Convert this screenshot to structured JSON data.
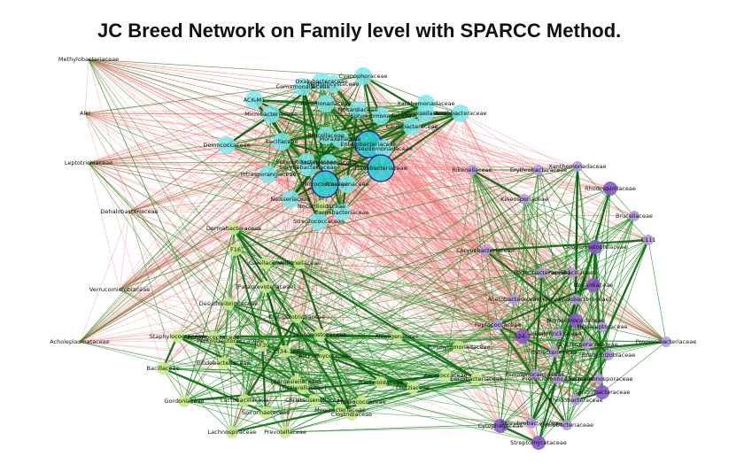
{
  "title": "JC Breed Network on Family level with SPARCC Method.",
  "colors": {
    "positive_edge": "#1a8a1a",
    "positive_edge_strong": "#0a5a0a",
    "negative_edge": "#f08080",
    "cluster_cyan": "#7fe8ec",
    "cluster_cyan_hub": "#2fd0d8",
    "cluster_green": "#c8ec8c",
    "cluster_purple": "#b89ae0",
    "cluster_purple_dark": "#8a5ac8",
    "hub_outline": "#1a1aa0"
  },
  "nodes": [
    {
      "label": "Methylobacteriaceae",
      "group": "none"
    },
    {
      "label": "Alkl",
      "group": "none"
    },
    {
      "label": "Leptotrichiaceae",
      "group": "none"
    },
    {
      "label": "Dehalobacteriaceae",
      "group": "none"
    },
    {
      "label": "Verrucomicrobiaceae",
      "group": "none"
    },
    {
      "label": "Acholeplasmataceae",
      "group": "none"
    },
    {
      "label": "Comamonadaceae",
      "group": "cyan"
    },
    {
      "label": "Methylocystaceae",
      "group": "cyan"
    },
    {
      "label": "Oxalobacteraceae",
      "group": "cyan"
    },
    {
      "label": "Cyanophoraceae",
      "group": "cyan"
    },
    {
      "label": "ACK-M1",
      "group": "cyan"
    },
    {
      "label": "Xanthomonadaceae",
      "group": "cyan"
    },
    {
      "label": "Microbacteriaceae",
      "group": "cyan"
    },
    {
      "label": "Nocardiaceae",
      "group": "cyan"
    },
    {
      "label": "[Weeksellaceae]",
      "group": "cyan"
    },
    {
      "label": "Sphingomonadaceae",
      "group": "cyan"
    },
    {
      "label": "Acetobacteraceae",
      "group": "cyan"
    },
    {
      "label": "Aeromonadaceae",
      "group": "cyan"
    },
    {
      "label": "Caulobacteraceae",
      "group": "cyan"
    },
    {
      "label": "Deinococcaceae",
      "group": "cyan"
    },
    {
      "label": "Bacillaceae",
      "group": "cyan"
    },
    {
      "label": "Brucellaceae",
      "group": "cyan"
    },
    {
      "label": "Moraxellaceae",
      "group": "cyan"
    },
    {
      "label": "Enterobacteriaceae",
      "group": "cyan_hub"
    },
    {
      "label": "Pseudomonadaceae",
      "group": "cyan"
    },
    {
      "label": "Sphingobacteriaceae",
      "group": "cyan"
    },
    {
      "label": "Corynebacteriaceae",
      "group": "cyan"
    },
    {
      "label": "Staphylococcaceae",
      "group": "cyan"
    },
    {
      "label": "Flavobacteriaceae",
      "group": "cyan_hub"
    },
    {
      "label": "Intrasporangiaceae",
      "group": "cyan"
    },
    {
      "label": "Micrococcaceae",
      "group": "cyan_hub"
    },
    {
      "label": "Neisseriaceae",
      "group": "cyan"
    },
    {
      "label": "Alcaligenaceae",
      "group": "cyan"
    },
    {
      "label": "Carnobacteriaceae",
      "group": "cyan"
    },
    {
      "label": "Streptococcaceae",
      "group": "cyan"
    },
    {
      "label": "Nocardioidaceae",
      "group": "green"
    },
    {
      "label": "Dermabacteraceae",
      "group": "green"
    },
    {
      "label": "F16",
      "group": "green"
    },
    {
      "label": "Gaiellaceae",
      "group": "green"
    },
    {
      "label": "Veillonellaceae",
      "group": "green"
    },
    {
      "label": "[Paraprevotellaceae]",
      "group": "green"
    },
    {
      "label": "Desulfovibrionaceae",
      "group": "green"
    },
    {
      "label": "Erysipelotrichaceae",
      "group": "green"
    },
    {
      "label": "Leuconostocaceae",
      "group": "green"
    },
    {
      "label": "Staphylococcaceae",
      "group": "green"
    },
    {
      "label": "Ruminococcaceae",
      "group": "green"
    },
    {
      "label": "Peptostreptococcaceae",
      "group": "green"
    },
    {
      "label": "RF39",
      "group": "green"
    },
    {
      "label": "p-2534-18B5",
      "group": "green"
    },
    {
      "label": "Actinomycetaceae",
      "group": "green"
    },
    {
      "label": "Alcaligenaceae",
      "group": "green"
    },
    {
      "label": "Bacillaceae",
      "group": "green"
    },
    {
      "label": "Bifidobacteriaceae",
      "group": "green"
    },
    {
      "label": "Gordoniaceae",
      "group": "green"
    },
    {
      "label": "Lactobacillaceae",
      "group": "green"
    },
    {
      "label": "Lachnospiraceae",
      "group": "green"
    },
    {
      "label": "Prevotellaceae",
      "group": "green"
    },
    {
      "label": "Spirochaetaceae",
      "group": "green"
    },
    {
      "label": "Clostridiaceae",
      "group": "green"
    },
    {
      "label": "Mogibacteriaceae",
      "group": "green"
    },
    {
      "label": "[Barnesiellaceae]",
      "group": "green"
    },
    {
      "label": "[Tissierellaceae]",
      "group": "green"
    },
    {
      "label": "Bacteroidaceae",
      "group": "green"
    },
    {
      "label": "Christensenellaceae",
      "group": "green"
    },
    {
      "label": "Enterococcaceae",
      "group": "green"
    },
    {
      "label": "Porphyromonadaceae",
      "group": "green"
    },
    {
      "label": "Coriobacteriaceae",
      "group": "green"
    },
    {
      "label": "Aerococcaceae",
      "group": "green"
    },
    {
      "label": "Dietziaceae",
      "group": "green"
    },
    {
      "label": "Rikenellaceae",
      "group": "purple"
    },
    {
      "label": "Erythrobacteraceae",
      "group": "purple"
    },
    {
      "label": "Xanthomonadaceae",
      "group": "purple"
    },
    {
      "label": "Rhodospirillaceae",
      "group": "purple"
    },
    {
      "label": "Kineosporiaceae",
      "group": "purple"
    },
    {
      "label": "Brucellaceae",
      "group": "purple"
    },
    {
      "label": "C111",
      "group": "purple"
    },
    {
      "label": "Geodermatophilaceae",
      "group": "purple"
    },
    {
      "label": "Corynebacteriaceae",
      "group": "purple"
    },
    {
      "label": "[Odoribacteraceae]",
      "group": "purple"
    },
    {
      "label": "Paenibacillaceae",
      "group": "purple"
    },
    {
      "label": "Nocardiaceae",
      "group": "purple"
    },
    {
      "label": "Acetobacteraceae",
      "group": "purple"
    },
    {
      "label": "[Chloracidobacteraceae]",
      "group": "purple"
    },
    {
      "label": "Peptococcaceae",
      "group": "purple"
    },
    {
      "label": "Nitrosomonadaceae",
      "group": "purple"
    },
    {
      "label": "Beijerinckiaceae",
      "group": "purple"
    },
    {
      "label": "Nitriliruptoraceae",
      "group": "purple"
    },
    {
      "label": "Propionibacteriaceae",
      "group": "purple"
    },
    {
      "label": "S24-7",
      "group": "purple"
    },
    {
      "label": "Eubacteriaceae",
      "group": "purple"
    },
    {
      "label": "Cryptosporangiaceae",
      "group": "purple"
    },
    {
      "label": "Bradyrhizobiaceae",
      "group": "purple"
    },
    {
      "label": "Cytophagaceae",
      "group": "purple"
    },
    {
      "label": "Pseudonocardiaceae",
      "group": "purple"
    },
    {
      "label": "Promicromonosporaceae",
      "group": "purple"
    },
    {
      "label": "Thermomonosporaceae",
      "group": "purple"
    },
    {
      "label": "Sanguibacteraceae",
      "group": "purple"
    },
    {
      "label": "Rhodobacteraceae",
      "group": "purple"
    },
    {
      "label": "Solirubrobacteraceae",
      "group": "purple"
    },
    {
      "label": "Cyclobacteriaceae",
      "group": "purple"
    },
    {
      "label": "Streptomycetaceae",
      "group": "purple"
    }
  ]
}
